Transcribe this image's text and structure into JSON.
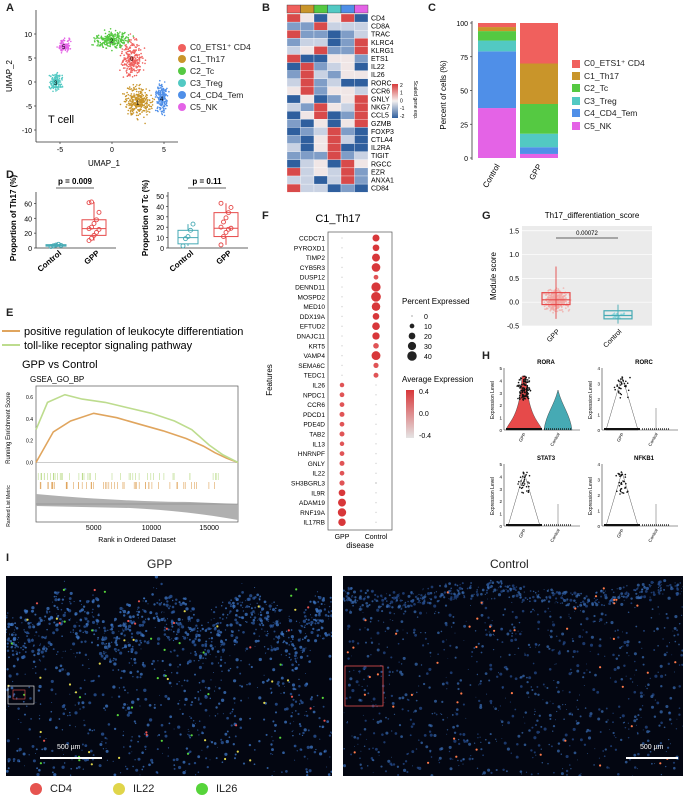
{
  "panels": {
    "A": "A",
    "B": "B",
    "C": "C",
    "D": "D",
    "E": "E",
    "F": "F",
    "G": "G",
    "H": "H",
    "I": "I"
  },
  "colors": {
    "C0": "#f0605d",
    "C1": "#c9952a",
    "C2": "#55c942",
    "C3": "#52c9c3",
    "C4": "#4f8fe8",
    "C5": "#e463e6",
    "gpp": "#e64a4a",
    "control": "#46aab4",
    "gsea1": "#e0a55e",
    "gsea2": "#bddc8e"
  },
  "umap": {
    "xlabel": "UMAP_1",
    "ylabel": "UMAP_2",
    "label": "T cell",
    "xticks": [
      "-5",
      "0",
      "5"
    ],
    "yticks": [
      "-10",
      "-5",
      "0",
      "5",
      "10"
    ],
    "clusters": [
      {
        "id": "0",
        "label": "C0_ETS1⁺ CD4"
      },
      {
        "id": "1",
        "label": "C1_Th17"
      },
      {
        "id": "2",
        "label": "C2_Tc"
      },
      {
        "id": "3",
        "label": "C3_Treg"
      },
      {
        "id": "4",
        "label": "C4_CD4_Tem"
      },
      {
        "id": "5",
        "label": "C5_NK"
      }
    ]
  },
  "heatmap": {
    "genes": [
      "CD4",
      "CD8A",
      "TRAC",
      "KLRC4",
      "KLRG1",
      "ETS1",
      "IL22",
      "IL26",
      "RORC",
      "CCR6",
      "GNLY",
      "NKG7",
      "CCL5",
      "GZMB",
      "FOXP3",
      "CTLA4",
      "IL2RA",
      "TIGIT",
      "RGCC",
      "EZR",
      "ANXA1",
      "CD84"
    ],
    "legend_title": "Scaled gene exp.",
    "legend_ticks": [
      "2",
      "1",
      "0",
      "-1",
      "-2"
    ]
  },
  "chart_data": [
    {
      "panel": "C",
      "type": "bar",
      "stacked": true,
      "categories": [
        "Control",
        "GPP"
      ],
      "ylabel": "Percent of cells (%)",
      "ylim": [
        0,
        100
      ],
      "yticks": [
        "0",
        "25",
        "50",
        "75",
        "100"
      ],
      "series": [
        {
          "name": "C0_ETS1⁺ CD4",
          "values": [
            3,
            30
          ]
        },
        {
          "name": "C1_Th17",
          "values": [
            3,
            30
          ]
        },
        {
          "name": "C2_Tc",
          "values": [
            7,
            22
          ]
        },
        {
          "name": "C3_Treg",
          "values": [
            8,
            10
          ]
        },
        {
          "name": "C4_CD4_Tem",
          "values": [
            42,
            5
          ]
        },
        {
          "name": "C5_NK",
          "values": [
            37,
            3
          ]
        }
      ]
    },
    {
      "panel": "D1",
      "type": "box",
      "categories": [
        "Control",
        "GPP"
      ],
      "ylabel": "Proportion of Th17 (%)",
      "ylim": [
        0,
        70
      ],
      "yticks": [
        "0",
        "20",
        "40",
        "60"
      ],
      "pvalue": "p = 0.009",
      "boxes": [
        {
          "name": "Control",
          "q1": 2.5,
          "median": 3.5,
          "q3": 4.5,
          "min": 1.5,
          "max": 6,
          "points": [
            2,
            3,
            4,
            5,
            3.5
          ]
        },
        {
          "name": "GPP",
          "q1": 17,
          "median": 26,
          "q3": 38,
          "min": 10,
          "max": 62,
          "points": [
            10,
            13,
            17,
            21,
            25,
            26,
            28,
            33,
            38,
            48,
            61,
            62
          ]
        }
      ]
    },
    {
      "panel": "D2",
      "type": "box",
      "categories": [
        "Control",
        "GPP"
      ],
      "ylabel": "Proportion of Tc (%)",
      "ylim": [
        0,
        50
      ],
      "yticks": [
        "0",
        "10",
        "20",
        "30",
        "40",
        "50"
      ],
      "pvalue": "p = 0.11",
      "boxes": [
        {
          "name": "Control",
          "q1": 4,
          "median": 10,
          "q3": 17,
          "min": 2,
          "max": 23,
          "points": [
            2,
            9,
            11,
            17,
            23
          ]
        },
        {
          "name": "GPP",
          "q1": 11,
          "median": 19,
          "q3": 34,
          "min": 3,
          "max": 43,
          "points": [
            3,
            11,
            15,
            18,
            19,
            20,
            25,
            29,
            34,
            39,
            43
          ]
        }
      ]
    },
    {
      "panel": "E",
      "type": "line",
      "title": "GPP vs Control",
      "subtitle": "GSEA_GO_BP",
      "ylabel": "Running Enrichment Score",
      "ylabel2": "Ranked List Metric",
      "xlabel": "Rank in Ordered Dataset",
      "xticks": [
        "5000",
        "10000",
        "15000"
      ],
      "yticks": [
        "0.6",
        "0.4",
        "0.2",
        "0.0"
      ],
      "ylim": [
        -0.05,
        0.7
      ],
      "series": [
        {
          "name": "positive regulation of leukocyte differentiation",
          "x": [
            0,
            1500,
            3000,
            5000,
            7000,
            9000,
            11000,
            13000,
            14500,
            15500,
            16500,
            17500
          ],
          "y": [
            0,
            0.28,
            0.38,
            0.45,
            0.41,
            0.35,
            0.29,
            0.22,
            0.15,
            0.09,
            0.04,
            0.0
          ]
        },
        {
          "name": "toll-like receptor signaling pathway",
          "x": [
            0,
            1000,
            2500,
            4000,
            6000,
            8000,
            10000,
            12000,
            13500,
            15000,
            16200,
            17500
          ],
          "y": [
            0.3,
            0.55,
            0.62,
            0.58,
            0.55,
            0.5,
            0.45,
            0.38,
            0.3,
            0.16,
            0.07,
            0.0
          ]
        }
      ]
    },
    {
      "panel": "F",
      "type": "dot",
      "title": "C1_Th17",
      "xlabel": "disease",
      "ylabel": "Features",
      "categories": [
        "GPP",
        "Control"
      ],
      "size_legend_title": "Percent Expressed",
      "size_legend": [
        "0",
        "10",
        "20",
        "30",
        "40"
      ],
      "color_legend_title": "Average Expression",
      "color_legend": [
        "0.4",
        "0.2",
        "0.0",
        "-0.2",
        "-0.4"
      ],
      "features": [
        "CCDC71",
        "PYROXD1",
        "TIMP2",
        "CYB5R3",
        "DUSP12",
        "DENND11",
        "MOSPD2",
        "MED10",
        "DDX19A",
        "EFTUD2",
        "DNAJC11",
        "KRT5",
        "VAMP4",
        "SEMA6C",
        "TEDC1",
        "IL26",
        "NPDC1",
        "CCR6",
        "PDCD1",
        "PDE4D",
        "TAB2",
        "IL13",
        "HNRNPF",
        "GNLY",
        "IL22",
        "SH3BGRL3",
        "IL9R",
        "ADAM19",
        "RNF19A",
        "IL17RB"
      ],
      "gpp_pct": [
        1,
        1,
        1,
        1,
        1,
        1,
        1,
        1,
        1,
        1,
        1,
        1,
        1,
        1,
        1,
        9,
        10,
        10,
        11,
        10,
        11,
        9,
        10,
        11,
        10,
        12,
        20,
        28,
        31,
        25
      ],
      "ctrl_pct": [
        22,
        20,
        28,
        33,
        10,
        38,
        42,
        32,
        20,
        26,
        24,
        14,
        35,
        12,
        11,
        1,
        1,
        1,
        1,
        1,
        1,
        1,
        1,
        1,
        1,
        2,
        1,
        1,
        1,
        1
      ]
    },
    {
      "panel": "G",
      "type": "box",
      "title": "Th17_differentiation_score",
      "ylabel": "Module score",
      "categories": [
        "GPP",
        "Control"
      ],
      "yticks": [
        "1.5",
        "1.0",
        "0.5",
        "0.0",
        "-0.5"
      ],
      "ylim": [
        -0.5,
        1.6
      ],
      "pvalue": "0.00072",
      "boxes": [
        {
          "name": "GPP",
          "q1": -0.05,
          "median": 0.05,
          "q3": 0.2,
          "min": -0.35,
          "max": 0.75
        },
        {
          "name": "Control",
          "q1": -0.35,
          "median": -0.28,
          "q3": -0.18,
          "min": -0.45,
          "max": -0.05
        }
      ]
    },
    {
      "panel": "H",
      "type": "violin",
      "ylabel": "Expression Level",
      "categories": [
        "GPP",
        "Control"
      ],
      "genes": [
        {
          "name": "RORA",
          "yticks": [
            "5",
            "4",
            "3",
            "2",
            "1",
            "0"
          ]
        },
        {
          "name": "RORC",
          "yticks": [
            "4",
            "3",
            "2",
            "1",
            "0"
          ]
        },
        {
          "name": "STAT3",
          "yticks": [
            "5",
            "4",
            "3",
            "2",
            "1",
            "0"
          ]
        },
        {
          "name": "NFKB1",
          "yticks": [
            "4",
            "3",
            "2",
            "1",
            "0"
          ]
        }
      ]
    }
  ],
  "images": {
    "left_label": "GPP",
    "right_label": "Control",
    "scale_left": "500 µm",
    "scale_right": "500 µm",
    "legend": [
      {
        "name": "CD4"
      },
      {
        "name": "IL22"
      },
      {
        "name": "IL26"
      }
    ],
    "legend_colors": [
      "#e6534f",
      "#e0d54a",
      "#56d43a"
    ]
  }
}
